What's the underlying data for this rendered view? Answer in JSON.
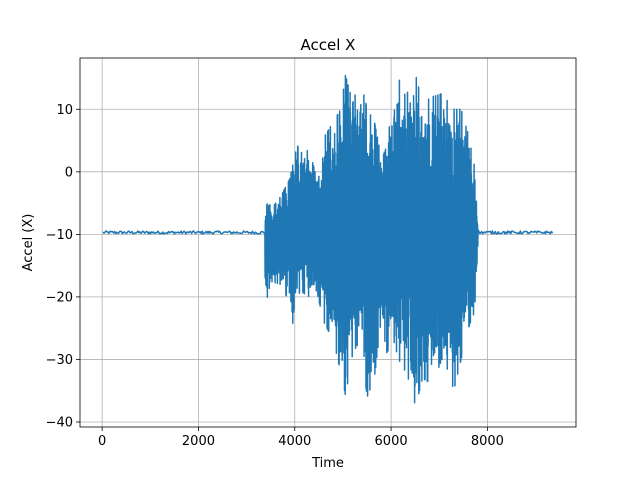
{
  "chart_data": {
    "type": "line",
    "title": "Accel X",
    "xlabel": "Time",
    "ylabel": "Accel (X)",
    "xlim": [
      -460,
      9840
    ],
    "ylim": [
      -40.8,
      18.2
    ],
    "x_ticks": [
      0,
      2000,
      4000,
      6000,
      8000
    ],
    "y_ticks": [
      -40,
      -30,
      -20,
      -10,
      0,
      10
    ],
    "x_tick_labels": [
      "0",
      "2000",
      "4000",
      "6000",
      "8000"
    ],
    "y_tick_labels": [
      "−40",
      "−30",
      "−20",
      "−10",
      "0",
      "10"
    ],
    "grid": true,
    "series": [
      {
        "color": "#1f77b4",
        "baseline": -9.7,
        "x_range": [
          0,
          9350
        ],
        "active_segment_x": [
          3380,
          7800
        ],
        "envelope": [
          {
            "x": 0,
            "lo": -10.2,
            "hi": -9.3
          },
          {
            "x": 550,
            "lo": -10.4,
            "hi": -9.1
          },
          {
            "x": 3370,
            "lo": -10.2,
            "hi": -9.3
          },
          {
            "x": 3385,
            "lo": -21.6,
            "hi": -1.8
          },
          {
            "x": 3500,
            "lo": -17.5,
            "hi": -6.0
          },
          {
            "x": 3700,
            "lo": -18.0,
            "hi": -4.0
          },
          {
            "x": 3900,
            "lo": -21.0,
            "hi": -1.0
          },
          {
            "x": 3950,
            "lo": -26.5,
            "hi": 6.8
          },
          {
            "x": 4100,
            "lo": -19.0,
            "hi": 3.0
          },
          {
            "x": 4300,
            "lo": -20.0,
            "hi": 3.5
          },
          {
            "x": 4450,
            "lo": -19.0,
            "hi": -1.0
          },
          {
            "x": 4600,
            "lo": -24.0,
            "hi": 5.5
          },
          {
            "x": 4800,
            "lo": -27.0,
            "hi": 8.0
          },
          {
            "x": 4950,
            "lo": -32.0,
            "hi": 10.0
          },
          {
            "x": 5050,
            "lo": -35.8,
            "hi": 15.5
          },
          {
            "x": 5200,
            "lo": -29.0,
            "hi": 11.0
          },
          {
            "x": 5350,
            "lo": -27.0,
            "hi": 15.0
          },
          {
            "x": 5500,
            "lo": -36.0,
            "hi": 10.0
          },
          {
            "x": 5650,
            "lo": -33.0,
            "hi": 8.0
          },
          {
            "x": 5800,
            "lo": -23.0,
            "hi": 2.0
          },
          {
            "x": 5900,
            "lo": -29.0,
            "hi": 4.0
          },
          {
            "x": 6050,
            "lo": -27.0,
            "hi": 12.0
          },
          {
            "x": 6150,
            "lo": -30.0,
            "hi": 15.0
          },
          {
            "x": 6300,
            "lo": -32.0,
            "hi": 12.0
          },
          {
            "x": 6450,
            "lo": -35.0,
            "hi": 15.0
          },
          {
            "x": 6500,
            "lo": -37.8,
            "hi": 15.7
          },
          {
            "x": 6650,
            "lo": -33.0,
            "hi": 11.0
          },
          {
            "x": 6850,
            "lo": -34.0,
            "hi": 12.0
          },
          {
            "x": 7050,
            "lo": -30.0,
            "hi": 12.5
          },
          {
            "x": 7200,
            "lo": -32.0,
            "hi": 11.0
          },
          {
            "x": 7300,
            "lo": -35.0,
            "hi": 10.0
          },
          {
            "x": 7450,
            "lo": -30.0,
            "hi": 10.0
          },
          {
            "x": 7600,
            "lo": -25.0,
            "hi": 6.0
          },
          {
            "x": 7750,
            "lo": -22.0,
            "hi": 0.0
          },
          {
            "x": 7800,
            "lo": -11.0,
            "hi": -8.5
          },
          {
            "x": 9350,
            "lo": -10.1,
            "hi": -9.4
          }
        ]
      }
    ]
  }
}
